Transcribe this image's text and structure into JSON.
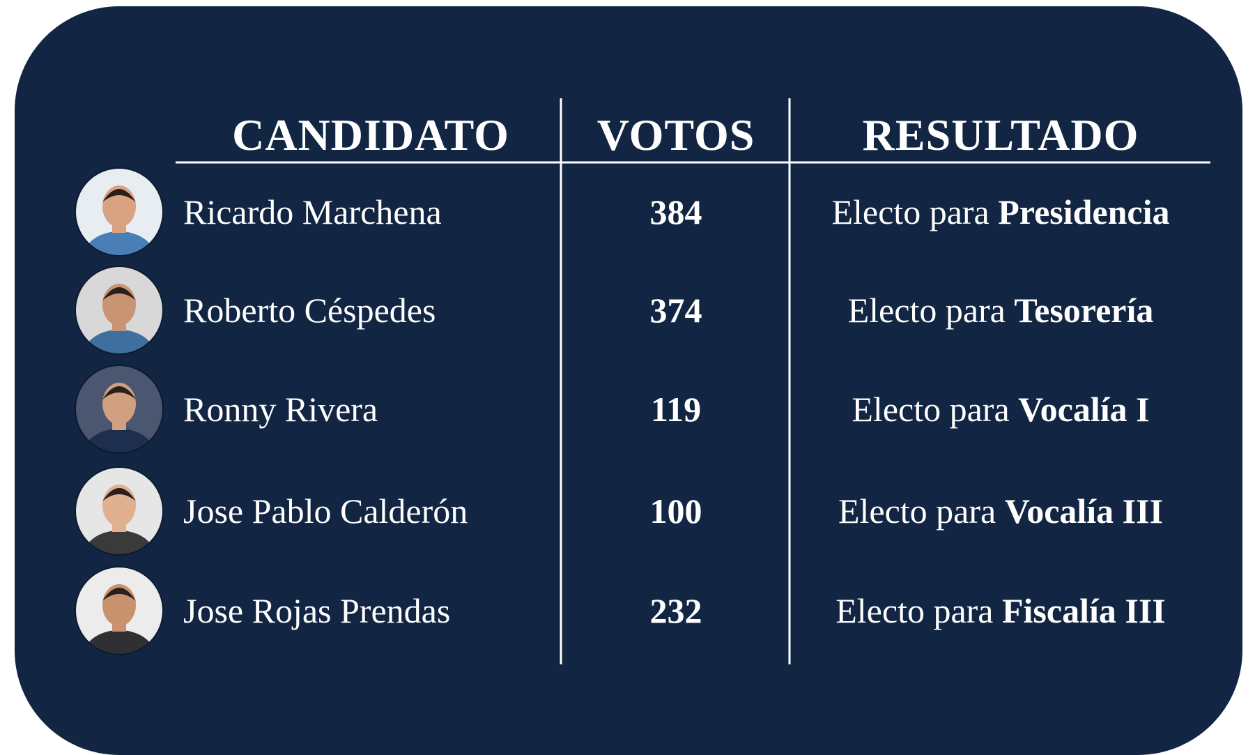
{
  "table": {
    "headers": [
      "CANDIDATO",
      "VOTOS",
      "RESULTADO"
    ],
    "rows": [
      {
        "name": "Ricardo Marchena",
        "votes": 384,
        "result": "Electo para",
        "position": "Presidencia"
      },
      {
        "name": "Roberto Céspedes",
        "votes": 374,
        "result": "Electo para",
        "position": "Tesorería"
      },
      {
        "name": "Ronny Rivera",
        "votes": 119,
        "result": "Electo para",
        "position": "Vocalía I"
      },
      {
        "name": "Jose Pablo Calderón",
        "votes": 100,
        "result": "Electo para",
        "position": "Vocalía III"
      },
      {
        "name": "Jose Rojas Prendas",
        "votes": 232,
        "result": "Electo para",
        "position": "Fiscalía III"
      }
    ]
  }
}
